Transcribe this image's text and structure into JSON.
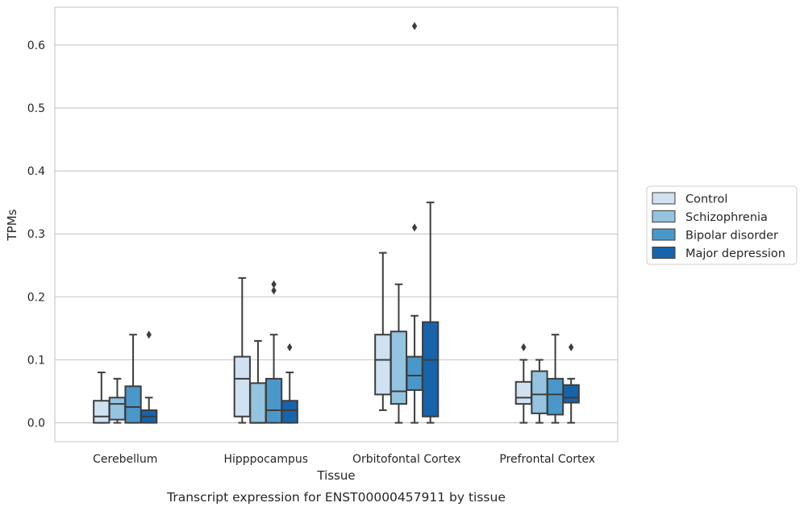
{
  "chart_data": {
    "type": "box",
    "caption": "Transcript expression for ENST00000457911 by tissue",
    "xlabel": "Tissue",
    "ylabel": "TPMs",
    "ylim": [
      -0.03,
      0.66
    ],
    "yticks": [
      0.0,
      0.1,
      0.2,
      0.3,
      0.4,
      0.5,
      0.6
    ],
    "ytick_labels": [
      "0.0",
      "0.1",
      "0.2",
      "0.3",
      "0.4",
      "0.5",
      "0.6"
    ],
    "grid": "horizontal",
    "legend_position": "right, outside",
    "categories": [
      "Cerebellum",
      "Hipppocampus",
      "Orbitofontal Cortex",
      "Prefrontal Cortex"
    ],
    "series": [
      {
        "name": "Control",
        "color": "#d0e1f2",
        "boxes": [
          {
            "whislo": 0.0,
            "q1": 0.0,
            "med": 0.01,
            "q3": 0.035,
            "whishi": 0.08,
            "fliers": []
          },
          {
            "whislo": 0.0,
            "q1": 0.01,
            "med": 0.07,
            "q3": 0.105,
            "whishi": 0.23,
            "fliers": []
          },
          {
            "whislo": 0.02,
            "q1": 0.045,
            "med": 0.1,
            "q3": 0.14,
            "whishi": 0.27,
            "fliers": []
          },
          {
            "whislo": 0.0,
            "q1": 0.03,
            "med": 0.04,
            "q3": 0.065,
            "whishi": 0.1,
            "fliers": [
              0.12
            ]
          }
        ]
      },
      {
        "name": "Schizophrenia",
        "color": "#94c4df",
        "boxes": [
          {
            "whislo": 0.0,
            "q1": 0.005,
            "med": 0.03,
            "q3": 0.04,
            "whishi": 0.07,
            "fliers": []
          },
          {
            "whislo": 0.0,
            "q1": 0.0,
            "med": 0.0,
            "q3": 0.063,
            "whishi": 0.13,
            "fliers": []
          },
          {
            "whislo": 0.0,
            "q1": 0.03,
            "med": 0.05,
            "q3": 0.145,
            "whishi": 0.22,
            "fliers": []
          },
          {
            "whislo": 0.0,
            "q1": 0.015,
            "med": 0.045,
            "q3": 0.082,
            "whishi": 0.1,
            "fliers": []
          }
        ]
      },
      {
        "name": "Bipolar disorder",
        "color": "#4a98c9",
        "boxes": [
          {
            "whislo": 0.0,
            "q1": 0.0,
            "med": 0.025,
            "q3": 0.058,
            "whishi": 0.14,
            "fliers": []
          },
          {
            "whislo": 0.0,
            "q1": 0.0,
            "med": 0.02,
            "q3": 0.07,
            "whishi": 0.14,
            "fliers": [
              0.21,
              0.22
            ]
          },
          {
            "whislo": 0.0,
            "q1": 0.052,
            "med": 0.075,
            "q3": 0.105,
            "whishi": 0.17,
            "fliers": [
              0.31,
              0.63
            ]
          },
          {
            "whislo": 0.0,
            "q1": 0.013,
            "med": 0.045,
            "q3": 0.07,
            "whishi": 0.14,
            "fliers": []
          }
        ]
      },
      {
        "name": "Major depression",
        "color": "#1764ab",
        "boxes": [
          {
            "whislo": 0.0,
            "q1": 0.0,
            "med": 0.01,
            "q3": 0.02,
            "whishi": 0.04,
            "fliers": [
              0.14
            ]
          },
          {
            "whislo": 0.0,
            "q1": 0.0,
            "med": 0.02,
            "q3": 0.035,
            "whishi": 0.08,
            "fliers": [
              0.12
            ]
          },
          {
            "whislo": 0.0,
            "q1": 0.01,
            "med": 0.1,
            "q3": 0.16,
            "whishi": 0.35,
            "fliers": []
          },
          {
            "whislo": 0.0,
            "q1": 0.032,
            "med": 0.04,
            "q3": 0.06,
            "whishi": 0.07,
            "fliers": [
              0.12
            ]
          }
        ]
      }
    ]
  }
}
